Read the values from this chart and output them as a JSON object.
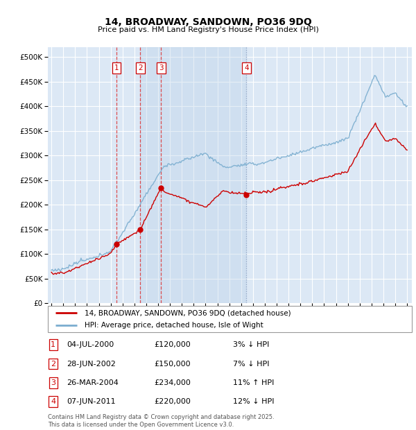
{
  "title": "14, BROADWAY, SANDOWN, PO36 9DQ",
  "subtitle": "Price paid vs. HM Land Registry's House Price Index (HPI)",
  "footer": "Contains HM Land Registry data © Crown copyright and database right 2025.\nThis data is licensed under the Open Government Licence v3.0.",
  "legend_entries": [
    "14, BROADWAY, SANDOWN, PO36 9DQ (detached house)",
    "HPI: Average price, detached house, Isle of Wight"
  ],
  "legend_colors": [
    "#cc0000",
    "#7aadcf"
  ],
  "transactions": [
    {
      "num": 1,
      "date": "04-JUL-2000",
      "price": 120000,
      "pct": "3%",
      "dir": "↓",
      "year": 2000.5
    },
    {
      "num": 2,
      "date": "28-JUN-2002",
      "price": 150000,
      "pct": "7%",
      "dir": "↓",
      "year": 2002.5
    },
    {
      "num": 3,
      "date": "26-MAR-2004",
      "price": 234000,
      "pct": "11%",
      "dir": "↑",
      "year": 2004.25
    },
    {
      "num": 4,
      "date": "07-JUN-2011",
      "price": 220000,
      "pct": "12%",
      "dir": "↓",
      "year": 2011.45
    }
  ],
  "table_rows": [
    [
      "1",
      "04-JUL-2000",
      "£120,000",
      "3% ↓ HPI"
    ],
    [
      "2",
      "28-JUN-2002",
      "£150,000",
      "7% ↓ HPI"
    ],
    [
      "3",
      "26-MAR-2004",
      "£234,000",
      "11% ↑ HPI"
    ],
    [
      "4",
      "07-JUN-2011",
      "£220,000",
      "12% ↓ HPI"
    ]
  ],
  "ylim": [
    0,
    520000
  ],
  "yticks": [
    0,
    50000,
    100000,
    150000,
    200000,
    250000,
    300000,
    350000,
    400000,
    450000,
    500000
  ],
  "xlim": [
    1994.7,
    2025.4
  ],
  "plot_bg_color": "#dce8f5",
  "grid_color": "#ffffff",
  "red_line_color": "#cc0000",
  "blue_line_color": "#7aadcf",
  "shade_color": "#c5d8ed",
  "vline_red_color": "#dd3333",
  "vline_blue_color": "#8899bb"
}
